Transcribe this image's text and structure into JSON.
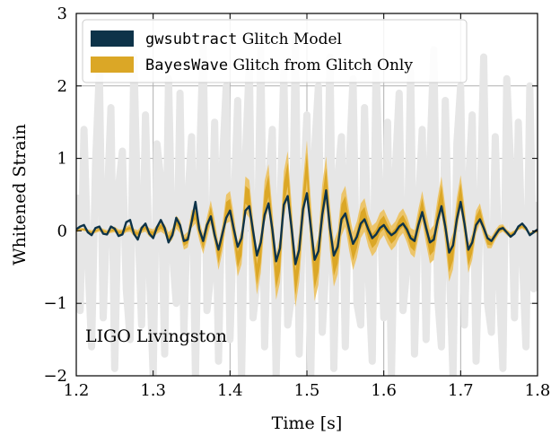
{
  "chart_data": {
    "type": "line",
    "xlabel": "Time [s]",
    "ylabel": "Whitened Strain",
    "xlim": [
      1.2,
      1.8
    ],
    "ylim": [
      -2,
      3
    ],
    "xticks": [
      1.2,
      1.3,
      1.4,
      1.5,
      1.6,
      1.7,
      1.8
    ],
    "yticks": [
      -2,
      -1,
      0,
      1,
      2,
      3
    ],
    "xtick_labels": [
      "1.2",
      "1.3",
      "1.4",
      "1.5",
      "1.6",
      "1.7",
      "1.8"
    ],
    "ytick_labels": [
      "−2",
      "−1",
      "0",
      "1",
      "2",
      "3"
    ],
    "grid": true,
    "legend_position": "top-left",
    "annotation": "LIGO Livingston",
    "legend": [
      {
        "code": "gwsubtract",
        "text": " Glitch Model",
        "color": "#0d3349"
      },
      {
        "code": "BayesWave",
        "text": " Glitch from Glitch Only",
        "color": "#dba726"
      }
    ],
    "colors": {
      "data": "#e6e6e6",
      "model": "#0d3349",
      "band_outer": "#ecc56b",
      "band_inner": "#dba726",
      "grid": "#b0b0b0"
    },
    "series": [
      {
        "name": "gwsubtract Glitch Model",
        "x": [
          1.2,
          1.205,
          1.21,
          1.215,
          1.22,
          1.225,
          1.23,
          1.235,
          1.24,
          1.245,
          1.25,
          1.255,
          1.26,
          1.265,
          1.27,
          1.275,
          1.28,
          1.285,
          1.29,
          1.295,
          1.3,
          1.305,
          1.31,
          1.315,
          1.32,
          1.325,
          1.33,
          1.335,
          1.34,
          1.345,
          1.35,
          1.355,
          1.36,
          1.365,
          1.37,
          1.375,
          1.38,
          1.385,
          1.39,
          1.395,
          1.4,
          1.405,
          1.41,
          1.415,
          1.42,
          1.425,
          1.43,
          1.435,
          1.44,
          1.445,
          1.45,
          1.455,
          1.46,
          1.465,
          1.47,
          1.475,
          1.48,
          1.485,
          1.49,
          1.495,
          1.5,
          1.505,
          1.51,
          1.515,
          1.52,
          1.525,
          1.53,
          1.535,
          1.54,
          1.545,
          1.55,
          1.555,
          1.56,
          1.565,
          1.57,
          1.575,
          1.58,
          1.585,
          1.59,
          1.595,
          1.6,
          1.605,
          1.61,
          1.615,
          1.62,
          1.625,
          1.63,
          1.635,
          1.64,
          1.645,
          1.65,
          1.655,
          1.66,
          1.665,
          1.67,
          1.675,
          1.68,
          1.685,
          1.69,
          1.695,
          1.7,
          1.705,
          1.71,
          1.715,
          1.72,
          1.725,
          1.73,
          1.735,
          1.74,
          1.745,
          1.75,
          1.755,
          1.76,
          1.765,
          1.77,
          1.775,
          1.78,
          1.785,
          1.79,
          1.795,
          1.8
        ],
        "values": [
          0.02,
          0.06,
          0.08,
          -0.02,
          -0.06,
          0.04,
          0.06,
          -0.04,
          -0.05,
          0.06,
          0.03,
          -0.07,
          -0.05,
          0.12,
          0.15,
          -0.04,
          -0.12,
          0.04,
          0.1,
          -0.04,
          -0.1,
          0.05,
          0.15,
          0.04,
          -0.16,
          -0.06,
          0.18,
          0.08,
          -0.14,
          -0.12,
          0.12,
          0.4,
          0.02,
          -0.14,
          0.08,
          0.2,
          -0.06,
          -0.26,
          -0.04,
          0.18,
          0.28,
          0.02,
          -0.22,
          -0.1,
          0.28,
          0.34,
          0.0,
          -0.34,
          -0.16,
          0.22,
          0.38,
          0.02,
          -0.42,
          -0.24,
          0.36,
          0.48,
          0.04,
          -0.46,
          -0.26,
          0.3,
          0.52,
          0.06,
          -0.4,
          -0.28,
          0.22,
          0.56,
          0.04,
          -0.34,
          -0.22,
          0.16,
          0.24,
          0.02,
          -0.18,
          -0.08,
          0.1,
          0.16,
          0.02,
          -0.1,
          -0.05,
          0.04,
          0.08,
          0.0,
          -0.06,
          -0.02,
          0.06,
          0.1,
          0.02,
          -0.1,
          -0.14,
          0.08,
          0.26,
          0.04,
          -0.16,
          -0.12,
          0.14,
          0.34,
          0.06,
          -0.3,
          -0.2,
          0.16,
          0.4,
          0.1,
          -0.26,
          -0.16,
          0.08,
          0.16,
          0.04,
          -0.1,
          -0.14,
          -0.06,
          0.02,
          0.04,
          -0.02,
          -0.08,
          -0.04,
          0.06,
          0.1,
          0.04,
          -0.06,
          -0.02,
          0.02
        ]
      },
      {
        "name": "BayesWave Glitch from Glitch Only",
        "x": [
          1.2,
          1.205,
          1.21,
          1.215,
          1.22,
          1.225,
          1.23,
          1.235,
          1.24,
          1.245,
          1.25,
          1.255,
          1.26,
          1.265,
          1.27,
          1.275,
          1.28,
          1.285,
          1.29,
          1.295,
          1.3,
          1.305,
          1.31,
          1.315,
          1.32,
          1.325,
          1.33,
          1.335,
          1.34,
          1.345,
          1.35,
          1.355,
          1.36,
          1.365,
          1.37,
          1.375,
          1.38,
          1.385,
          1.39,
          1.395,
          1.4,
          1.405,
          1.41,
          1.415,
          1.42,
          1.425,
          1.43,
          1.435,
          1.44,
          1.445,
          1.45,
          1.455,
          1.46,
          1.465,
          1.47,
          1.475,
          1.48,
          1.485,
          1.49,
          1.495,
          1.5,
          1.505,
          1.51,
          1.515,
          1.52,
          1.525,
          1.53,
          1.535,
          1.54,
          1.545,
          1.55,
          1.555,
          1.56,
          1.565,
          1.57,
          1.575,
          1.58,
          1.585,
          1.59,
          1.595,
          1.6,
          1.605,
          1.61,
          1.615,
          1.62,
          1.625,
          1.63,
          1.635,
          1.64,
          1.645,
          1.65,
          1.655,
          1.66,
          1.665,
          1.67,
          1.675,
          1.68,
          1.685,
          1.69,
          1.695,
          1.7,
          1.705,
          1.71,
          1.715,
          1.72,
          1.725,
          1.73,
          1.735,
          1.74,
          1.745,
          1.75,
          1.755,
          1.76,
          1.765,
          1.77,
          1.775,
          1.78,
          1.785,
          1.79,
          1.795,
          1.8
        ],
        "median": [
          0.0,
          0.02,
          0.02,
          0.0,
          -0.02,
          0.0,
          0.02,
          0.0,
          -0.02,
          0.0,
          0.02,
          -0.02,
          -0.02,
          0.02,
          0.04,
          -0.02,
          -0.04,
          0.02,
          0.04,
          -0.02,
          -0.04,
          0.02,
          0.06,
          0.02,
          -0.1,
          -0.04,
          0.12,
          0.06,
          -0.16,
          -0.12,
          0.16,
          0.22,
          0.0,
          -0.18,
          0.04,
          0.26,
          -0.02,
          -0.36,
          -0.1,
          0.3,
          0.34,
          0.0,
          -0.4,
          -0.22,
          0.5,
          0.44,
          -0.1,
          -0.6,
          -0.3,
          0.4,
          0.62,
          0.0,
          -0.64,
          -0.4,
          0.5,
          0.78,
          0.04,
          -0.72,
          -0.36,
          0.36,
          0.9,
          0.08,
          -0.62,
          -0.4,
          0.3,
          0.7,
          0.04,
          -0.46,
          -0.3,
          0.22,
          0.34,
          0.0,
          -0.28,
          -0.12,
          0.14,
          0.22,
          0.0,
          -0.14,
          -0.08,
          0.06,
          0.12,
          0.0,
          -0.1,
          -0.04,
          0.08,
          0.14,
          0.02,
          -0.14,
          -0.18,
          0.1,
          0.34,
          0.04,
          -0.22,
          -0.16,
          0.2,
          0.5,
          0.08,
          -0.44,
          -0.28,
          0.22,
          0.54,
          0.12,
          -0.38,
          -0.22,
          0.12,
          0.24,
          0.04,
          -0.14,
          -0.16,
          -0.06,
          0.02,
          0.04,
          -0.02,
          -0.06,
          -0.02,
          0.04,
          0.06,
          0.02,
          -0.04,
          -0.02,
          0.0
        ],
        "inner_halfwidth": [
          0.01,
          0.01,
          0.01,
          0.01,
          0.01,
          0.01,
          0.01,
          0.01,
          0.01,
          0.01,
          0.02,
          0.02,
          0.02,
          0.02,
          0.02,
          0.02,
          0.02,
          0.02,
          0.02,
          0.02,
          0.03,
          0.03,
          0.03,
          0.03,
          0.03,
          0.04,
          0.04,
          0.04,
          0.05,
          0.05,
          0.06,
          0.06,
          0.06,
          0.07,
          0.07,
          0.08,
          0.08,
          0.09,
          0.09,
          0.1,
          0.1,
          0.11,
          0.11,
          0.12,
          0.12,
          0.13,
          0.13,
          0.14,
          0.14,
          0.14,
          0.15,
          0.15,
          0.15,
          0.16,
          0.16,
          0.16,
          0.17,
          0.17,
          0.17,
          0.17,
          0.18,
          0.18,
          0.18,
          0.17,
          0.17,
          0.17,
          0.16,
          0.16,
          0.15,
          0.15,
          0.14,
          0.14,
          0.13,
          0.12,
          0.12,
          0.11,
          0.11,
          0.1,
          0.1,
          0.09,
          0.09,
          0.09,
          0.08,
          0.08,
          0.08,
          0.08,
          0.09,
          0.09,
          0.1,
          0.1,
          0.11,
          0.11,
          0.12,
          0.12,
          0.13,
          0.13,
          0.13,
          0.13,
          0.13,
          0.12,
          0.12,
          0.11,
          0.1,
          0.09,
          0.08,
          0.07,
          0.06,
          0.05,
          0.04,
          0.04,
          0.03,
          0.03,
          0.02,
          0.02,
          0.02,
          0.02,
          0.01,
          0.01,
          0.01,
          0.01,
          0.01
        ],
        "outer_halfwidth": [
          0.02,
          0.02,
          0.02,
          0.02,
          0.03,
          0.03,
          0.03,
          0.03,
          0.03,
          0.03,
          0.04,
          0.04,
          0.04,
          0.04,
          0.05,
          0.05,
          0.05,
          0.05,
          0.05,
          0.06,
          0.06,
          0.06,
          0.07,
          0.07,
          0.08,
          0.08,
          0.09,
          0.09,
          0.1,
          0.11,
          0.12,
          0.12,
          0.13,
          0.14,
          0.15,
          0.16,
          0.17,
          0.18,
          0.19,
          0.2,
          0.21,
          0.22,
          0.23,
          0.24,
          0.25,
          0.26,
          0.27,
          0.28,
          0.28,
          0.29,
          0.3,
          0.3,
          0.31,
          0.31,
          0.32,
          0.32,
          0.33,
          0.33,
          0.34,
          0.34,
          0.35,
          0.35,
          0.35,
          0.34,
          0.34,
          0.33,
          0.32,
          0.31,
          0.3,
          0.29,
          0.28,
          0.27,
          0.26,
          0.25,
          0.24,
          0.23,
          0.22,
          0.21,
          0.2,
          0.19,
          0.18,
          0.18,
          0.17,
          0.17,
          0.17,
          0.17,
          0.18,
          0.18,
          0.19,
          0.2,
          0.21,
          0.22,
          0.23,
          0.24,
          0.25,
          0.25,
          0.26,
          0.26,
          0.25,
          0.24,
          0.23,
          0.22,
          0.2,
          0.18,
          0.16,
          0.14,
          0.12,
          0.1,
          0.08,
          0.07,
          0.06,
          0.05,
          0.04,
          0.04,
          0.03,
          0.03,
          0.03,
          0.02,
          0.02,
          0.02,
          0.02
        ]
      },
      {
        "name": "Whitened data",
        "x": [
          1.2,
          1.205,
          1.21,
          1.215,
          1.22,
          1.225,
          1.23,
          1.235,
          1.24,
          1.245,
          1.25,
          1.255,
          1.26,
          1.265,
          1.27,
          1.275,
          1.28,
          1.285,
          1.29,
          1.295,
          1.3,
          1.305,
          1.31,
          1.315,
          1.32,
          1.325,
          1.33,
          1.335,
          1.34,
          1.345,
          1.35,
          1.355,
          1.36,
          1.365,
          1.37,
          1.375,
          1.38,
          1.385,
          1.39,
          1.395,
          1.4,
          1.405,
          1.41,
          1.415,
          1.42,
          1.425,
          1.43,
          1.435,
          1.44,
          1.445,
          1.45,
          1.455,
          1.46,
          1.465,
          1.47,
          1.475,
          1.48,
          1.485,
          1.49,
          1.495,
          1.5,
          1.505,
          1.51,
          1.515,
          1.52,
          1.525,
          1.53,
          1.535,
          1.54,
          1.545,
          1.55,
          1.555,
          1.56,
          1.565,
          1.57,
          1.575,
          1.58,
          1.585,
          1.59,
          1.595,
          1.6,
          1.605,
          1.61,
          1.615,
          1.62,
          1.625,
          1.63,
          1.635,
          1.64,
          1.645,
          1.65,
          1.655,
          1.66,
          1.665,
          1.67,
          1.675,
          1.68,
          1.685,
          1.69,
          1.695,
          1.7,
          1.705,
          1.71,
          1.715,
          1.72,
          1.725,
          1.73,
          1.735,
          1.74,
          1.745,
          1.75,
          1.755,
          1.76,
          1.765,
          1.77,
          1.775,
          1.78,
          1.785,
          1.79,
          1.795,
          1.8
        ],
        "values": [
          0.5,
          -1.1,
          1.4,
          -0.4,
          -1.6,
          0.9,
          2.2,
          -1.2,
          0.3,
          1.7,
          -1.9,
          0.6,
          1.1,
          -0.8,
          -1.5,
          2.4,
          0.2,
          -1.3,
          1.6,
          -0.5,
          -2.0,
          1.2,
          0.7,
          -1.7,
          2.1,
          -0.3,
          -1.0,
          1.9,
          -1.4,
          0.4,
          1.3,
          -2.0,
          0.8,
          2.6,
          -1.1,
          -0.6,
          1.5,
          -1.8,
          0.9,
          2.0,
          -1.5,
          0.3,
          1.8,
          -2.0,
          1.0,
          2.3,
          -1.2,
          -0.7,
          2.5,
          -1.6,
          0.6,
          1.4,
          -2.0,
          0.2,
          2.2,
          -1.3,
          -0.9,
          2.7,
          -1.7,
          0.5,
          1.6,
          -2.0,
          1.1,
          2.0,
          -1.4,
          -0.4,
          2.4,
          -1.9,
          0.7,
          1.3,
          -1.6,
          0.9,
          2.1,
          -1.0,
          -1.3,
          1.7,
          -0.6,
          -1.8,
          2.3,
          0.4,
          -1.2,
          1.5,
          -2.0,
          0.8,
          1.9,
          -1.1,
          -0.5,
          2.2,
          -1.7,
          0.3,
          1.4,
          -1.5,
          1.0,
          2.5,
          -0.9,
          -1.6,
          1.8,
          -0.4,
          -2.0,
          1.2,
          2.0,
          -1.3,
          0.6,
          1.6,
          -1.8,
          0.2,
          2.4,
          -1.0,
          -1.4,
          1.3,
          -0.7,
          -1.9,
          2.1,
          0.9,
          -1.2,
          1.5,
          -0.3,
          -1.6,
          2.0,
          -0.8,
          0.4
        ]
      }
    ]
  }
}
